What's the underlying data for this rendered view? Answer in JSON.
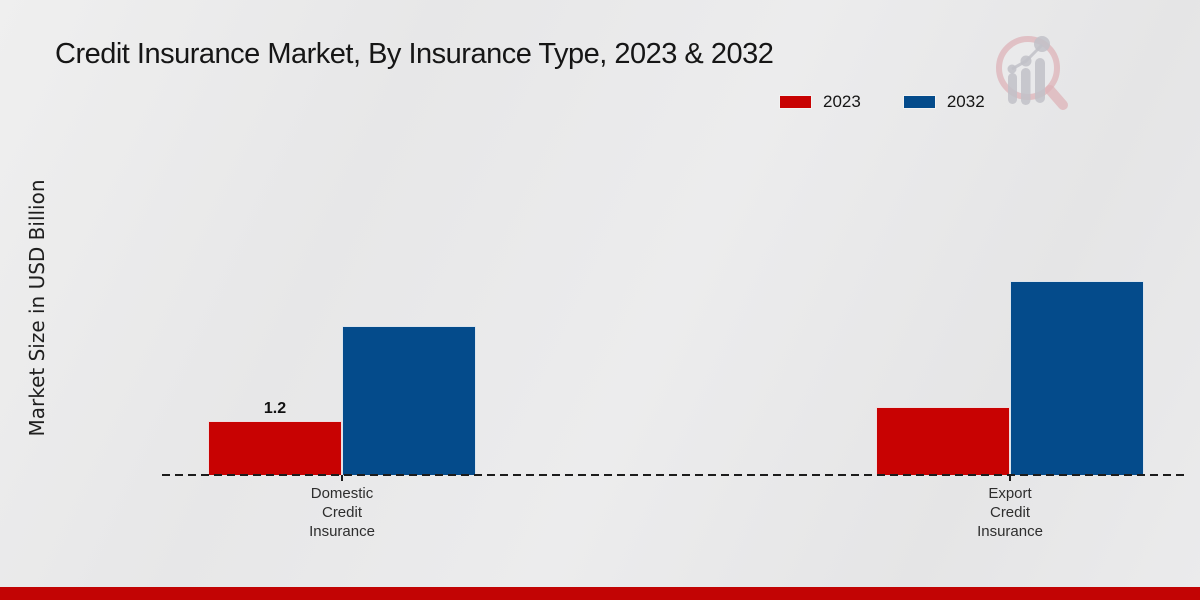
{
  "page": {
    "footer_bar_color": "#c20404",
    "watermark_icon": "mrfr-magnifier-bar-chart-logo",
    "watermark_ring_color": "#ddb3b8",
    "watermark_bar_color": "#c6c6cc"
  },
  "chart_data": {
    "type": "bar",
    "title": "Credit Insurance Market, By Insurance Type, 2023 & 2032",
    "xlabel": "",
    "ylabel": "Market Size in USD Billion",
    "categories": [
      "Domestic\nCredit\nInsurance",
      "Export\nCredit\nInsurance"
    ],
    "series": [
      {
        "name": "2023",
        "color": "#c80202",
        "values": [
          1.2,
          1.5
        ],
        "value_labels": [
          "1.2",
          ""
        ]
      },
      {
        "name": "2032",
        "color": "#044b8b",
        "values": [
          3.3,
          4.3
        ],
        "value_labels": [
          "",
          ""
        ]
      }
    ],
    "ylim": [
      0,
      5
    ],
    "grid": false,
    "legend_position": "top-right",
    "x_axis_style": "dashed-baseline"
  }
}
